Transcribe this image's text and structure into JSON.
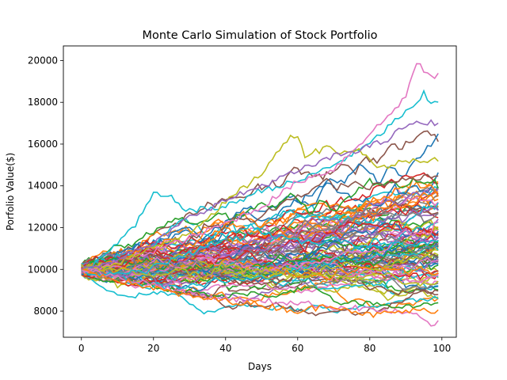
{
  "chart_data": {
    "type": "line",
    "title": "Monte Carlo Simulation of Stock Portfolio",
    "xlabel": "Days",
    "ylabel": "Porfolio Value($)",
    "xlim": [
      -5,
      104
    ],
    "ylim": [
      6750,
      20700
    ],
    "xticks": [
      0,
      20,
      40,
      60,
      80,
      100
    ],
    "yticks": [
      8000,
      10000,
      12000,
      14000,
      16000,
      18000,
      20000
    ],
    "grid": false,
    "legend": "none",
    "n_days": 100,
    "start_value": 10000,
    "colors": [
      "#1f77b4",
      "#ff7f0e",
      "#2ca02c",
      "#d62728",
      "#9467bd",
      "#8c564b",
      "#e377c2",
      "#7f7f7f",
      "#bcbd22",
      "#17becf"
    ],
    "highlighted_series": [
      {
        "points": [
          [
            0,
            10000
          ],
          [
            5,
            10400
          ],
          [
            10,
            11300
          ],
          [
            15,
            12100
          ],
          [
            20,
            13600
          ],
          [
            25,
            13400
          ],
          [
            30,
            12800
          ],
          [
            40,
            13000
          ],
          [
            50,
            13800
          ],
          [
            60,
            14200
          ],
          [
            70,
            15000
          ],
          [
            80,
            16000
          ],
          [
            85,
            16800
          ],
          [
            88,
            17300
          ],
          [
            92,
            17700
          ],
          [
            95,
            18400
          ],
          [
            97,
            17900
          ],
          [
            99,
            18100
          ]
        ],
        "color": "#17becf"
      },
      {
        "points": [
          [
            0,
            10000
          ],
          [
            10,
            10300
          ],
          [
            20,
            10900
          ],
          [
            30,
            11500
          ],
          [
            40,
            12200
          ],
          [
            50,
            13000
          ],
          [
            60,
            14200
          ],
          [
            70,
            14800
          ],
          [
            80,
            16500
          ],
          [
            85,
            17300
          ],
          [
            90,
            18300
          ],
          [
            93,
            19900
          ],
          [
            94,
            19700
          ],
          [
            96,
            19300
          ],
          [
            99,
            19250
          ]
        ],
        "color": "#e377c2"
      },
      {
        "points": [
          [
            0,
            10000
          ],
          [
            10,
            10300
          ],
          [
            20,
            11000
          ],
          [
            30,
            11800
          ],
          [
            40,
            13200
          ],
          [
            50,
            14600
          ],
          [
            55,
            15700
          ],
          [
            58,
            16500
          ],
          [
            60,
            16300
          ],
          [
            62,
            15500
          ],
          [
            66,
            15700
          ],
          [
            68,
            16000
          ],
          [
            72,
            15500
          ],
          [
            76,
            15800
          ],
          [
            79,
            15500
          ],
          [
            82,
            14800
          ],
          [
            90,
            15200
          ],
          [
            99,
            15300
          ]
        ],
        "color": "#bcbd22"
      },
      {
        "points": [
          [
            0,
            10000
          ],
          [
            10,
            9600
          ],
          [
            20,
            9300
          ],
          [
            30,
            8800
          ],
          [
            40,
            8600
          ],
          [
            50,
            8500
          ],
          [
            60,
            8400
          ],
          [
            70,
            8200
          ],
          [
            80,
            8100
          ],
          [
            90,
            7900
          ],
          [
            94,
            7700
          ],
          [
            96,
            7400
          ],
          [
            99,
            7400
          ]
        ],
        "color": "#e377c2"
      },
      {
        "points": [
          [
            0,
            10000
          ],
          [
            10,
            9500
          ],
          [
            20,
            9100
          ],
          [
            30,
            8700
          ],
          [
            40,
            8500
          ],
          [
            50,
            8300
          ],
          [
            60,
            8000
          ],
          [
            70,
            8300
          ],
          [
            80,
            7800
          ],
          [
            90,
            8000
          ],
          [
            99,
            8050
          ]
        ],
        "color": "#ff7f0e"
      },
      {
        "points": [
          [
            0,
            10000
          ],
          [
            10,
            10500
          ],
          [
            20,
            11200
          ],
          [
            30,
            12500
          ],
          [
            40,
            13300
          ],
          [
            50,
            14000
          ],
          [
            60,
            14700
          ],
          [
            70,
            15400
          ],
          [
            80,
            15900
          ],
          [
            85,
            16200
          ],
          [
            90,
            16900
          ],
          [
            95,
            17000
          ],
          [
            99,
            17050
          ]
        ],
        "color": "#9467bd"
      }
    ]
  }
}
